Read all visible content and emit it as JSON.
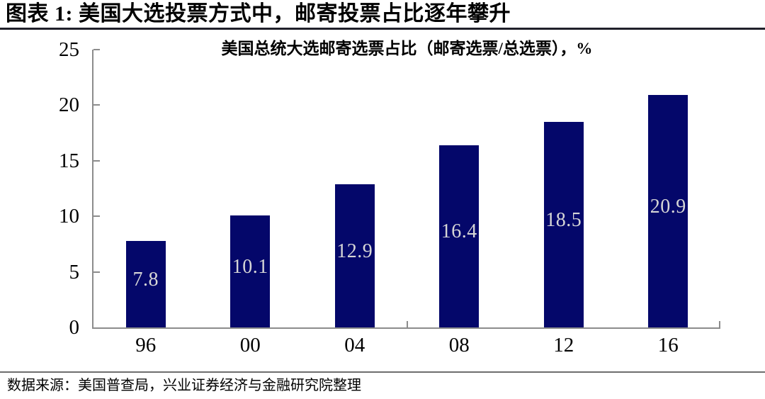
{
  "header": {
    "title": "图表 1: 美国大选投票方式中，邮寄投票占比逐年攀升"
  },
  "chart_data": {
    "type": "bar",
    "title": "美国总统大选邮寄选票占比（邮寄选票/总选票），%",
    "categories": [
      "96",
      "00",
      "04",
      "08",
      "12",
      "16"
    ],
    "values": [
      7.8,
      10.1,
      12.9,
      16.4,
      18.5,
      20.9
    ],
    "ylim": [
      0,
      25
    ],
    "yticks": [
      0,
      5,
      10,
      15,
      20,
      25
    ],
    "xlabel": "",
    "ylabel": "",
    "grid": false,
    "legend": "none",
    "value_labels": "inside",
    "colors": {
      "bar": "#04076a",
      "value_label": "#d6d6d6",
      "axis": "#8c8c8c"
    }
  },
  "footer": {
    "source": "数据来源：美国普查局，兴业证券经济与金融研究院整理"
  }
}
